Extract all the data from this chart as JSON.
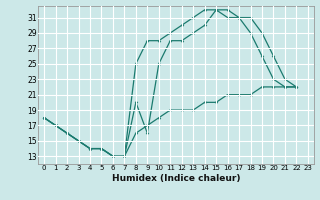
{
  "xlabel": "Humidex (Indice chaleur)",
  "bg_color": "#cce8e8",
  "grid_color": "#ffffff",
  "line_color": "#1a7a6e",
  "xlim": [
    -0.5,
    23.5
  ],
  "ylim": [
    12,
    32.5
  ],
  "yticks": [
    13,
    15,
    17,
    19,
    21,
    23,
    25,
    27,
    29,
    31
  ],
  "xticks": [
    0,
    1,
    2,
    3,
    4,
    5,
    6,
    7,
    8,
    9,
    10,
    11,
    12,
    13,
    14,
    15,
    16,
    17,
    18,
    19,
    20,
    21,
    22,
    23
  ],
  "series": [
    {
      "x": [
        0,
        1,
        2,
        3,
        4,
        5,
        6,
        7,
        8,
        9,
        10,
        11,
        12,
        13,
        14,
        15,
        16,
        17,
        18,
        19,
        20,
        21,
        22
      ],
      "y": [
        18,
        17,
        16,
        15,
        14,
        14,
        13,
        13,
        25,
        28,
        28,
        29,
        30,
        31,
        32,
        32,
        31,
        31,
        29,
        26,
        23,
        22,
        22
      ]
    },
    {
      "x": [
        0,
        1,
        2,
        3,
        4,
        5,
        6,
        7,
        8,
        9,
        10,
        11,
        12,
        13,
        14,
        15,
        16,
        17,
        18,
        19,
        20,
        21,
        22
      ],
      "y": [
        18,
        17,
        16,
        15,
        14,
        14,
        13,
        13,
        16,
        17,
        18,
        19,
        19,
        19,
        20,
        20,
        21,
        21,
        21,
        22,
        22,
        22,
        22
      ]
    },
    {
      "x": [
        0,
        1,
        2,
        3,
        4,
        5,
        6,
        7,
        8,
        9,
        10,
        11,
        12,
        13,
        14,
        15,
        16,
        17,
        18,
        19,
        20,
        21,
        22
      ],
      "y": [
        18,
        17,
        16,
        15,
        14,
        14,
        13,
        13,
        20,
        16,
        25,
        28,
        28,
        29,
        30,
        32,
        32,
        31,
        31,
        29,
        26,
        23,
        22
      ]
    }
  ]
}
